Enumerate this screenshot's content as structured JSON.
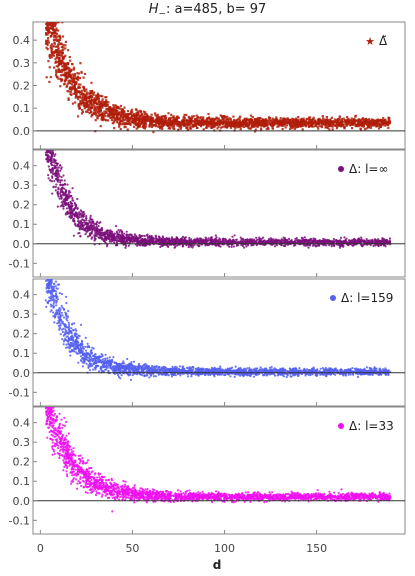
{
  "title": {
    "symbol": "H",
    "subscript": "−",
    "rest": ": a=485, b= 97"
  },
  "chart_data": {
    "type": "scatter",
    "xlabel": "d",
    "x_ticks": [
      0,
      50,
      100,
      150
    ],
    "xlim": [
      -4,
      198
    ],
    "y_ticks": [
      -0.1,
      0.0,
      0.1,
      0.2,
      0.3,
      0.4
    ],
    "panels": [
      {
        "legend": "Δ̃",
        "marker": "star",
        "color": "#b01f0a",
        "ylim": [
          -0.08,
          0.48
        ],
        "trend": {
          "amplitude": 0.5,
          "decay": 14,
          "asymptote": 0.035,
          "spread_at_zero": 0.12,
          "spread_floor": 0.018
        },
        "points_count": 2600,
        "x_range": [
          3,
          190
        ]
      },
      {
        "legend": "Δ: l=∞",
        "marker": "dot",
        "color": "#7b0f7b",
        "ylim": [
          -0.17,
          0.48
        ],
        "trend": {
          "amplitude": 0.55,
          "decay": 12,
          "asymptote": 0.008,
          "spread_at_zero": 0.11,
          "spread_floor": 0.015
        },
        "points_count": 2400,
        "x_range": [
          3,
          190
        ]
      },
      {
        "legend": "Δ: l=159",
        "marker": "dot",
        "color": "#5560ee",
        "ylim": [
          -0.17,
          0.48
        ],
        "trend": {
          "amplitude": 0.55,
          "decay": 12,
          "asymptote": 0.005,
          "spread_at_zero": 0.12,
          "spread_floor": 0.015
        },
        "points_count": 2400,
        "x_range": [
          3,
          190
        ]
      },
      {
        "legend": "Δ: l=33",
        "marker": "dot",
        "color": "#ee11ee",
        "ylim": [
          -0.17,
          0.48
        ],
        "trend": {
          "amplitude": 0.5,
          "decay": 14,
          "asymptote": 0.02,
          "spread_at_zero": 0.12,
          "spread_floor": 0.015
        },
        "points_count": 2400,
        "x_range": [
          3,
          190
        ]
      }
    ]
  }
}
